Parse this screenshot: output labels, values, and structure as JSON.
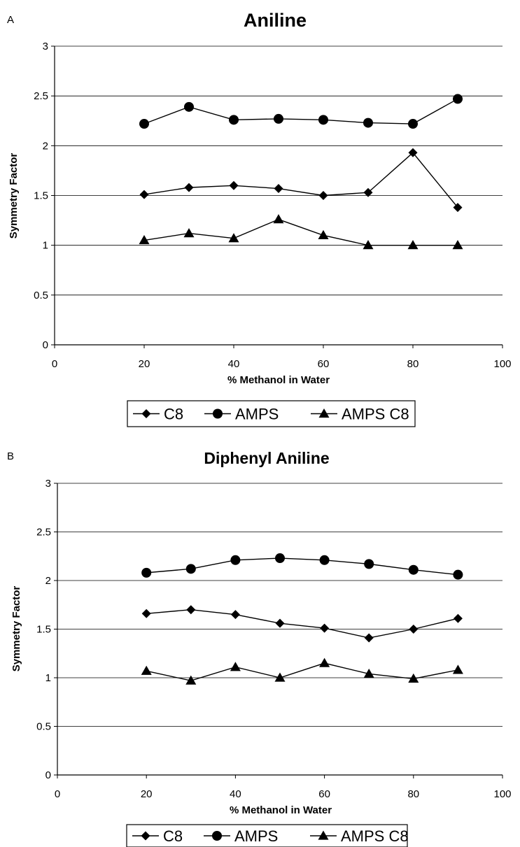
{
  "chart_data": [
    {
      "type": "line",
      "panel_label": "A",
      "title": "Aniline",
      "xlabel": "% Methanol in Water",
      "ylabel": "Symmetry Factor",
      "xlim": [
        0,
        100
      ],
      "ylim": [
        0,
        3
      ],
      "xticks": [
        "0",
        "20",
        "40",
        "60",
        "80",
        "100"
      ],
      "yticks": [
        "0",
        "0.5",
        "1",
        "1.5",
        "2",
        "2.5",
        "3"
      ],
      "x": [
        20,
        30,
        40,
        50,
        60,
        70,
        80,
        90
      ],
      "grid": "horizontal",
      "legend_position": "bottom",
      "series": [
        {
          "name": "C8",
          "marker": "diamond",
          "values": [
            1.51,
            1.58,
            1.6,
            1.57,
            1.5,
            1.53,
            1.93,
            1.38
          ]
        },
        {
          "name": "AMPS",
          "marker": "circle",
          "values": [
            2.22,
            2.39,
            2.26,
            2.27,
            2.26,
            2.23,
            2.22,
            2.47
          ]
        },
        {
          "name": "AMPS C8",
          "marker": "triangle",
          "values": [
            1.05,
            1.12,
            1.07,
            1.26,
            1.1,
            1.0,
            1.0,
            1.0
          ]
        }
      ]
    },
    {
      "type": "line",
      "panel_label": "B",
      "title": "Diphenyl Aniline",
      "xlabel": "% Methanol in Water",
      "ylabel": "Symmetry Factor",
      "xlim": [
        0,
        100
      ],
      "ylim": [
        0,
        3
      ],
      "xticks": [
        "0",
        "20",
        "40",
        "60",
        "80",
        "100"
      ],
      "yticks": [
        "0",
        "0.5",
        "1",
        "1.5",
        "2",
        "2.5",
        "3"
      ],
      "x": [
        20,
        30,
        40,
        50,
        60,
        70,
        80,
        90
      ],
      "grid": "horizontal",
      "legend_position": "bottom",
      "series": [
        {
          "name": "C8",
          "marker": "diamond",
          "values": [
            1.66,
            1.7,
            1.65,
            1.56,
            1.51,
            1.41,
            1.5,
            1.61
          ]
        },
        {
          "name": "AMPS",
          "marker": "circle",
          "values": [
            2.08,
            2.12,
            2.21,
            2.23,
            2.21,
            2.17,
            2.11,
            2.06
          ]
        },
        {
          "name": "AMPS C8",
          "marker": "triangle",
          "values": [
            1.07,
            0.97,
            1.11,
            1.0,
            1.15,
            1.04,
            0.99,
            1.08
          ]
        }
      ]
    }
  ]
}
